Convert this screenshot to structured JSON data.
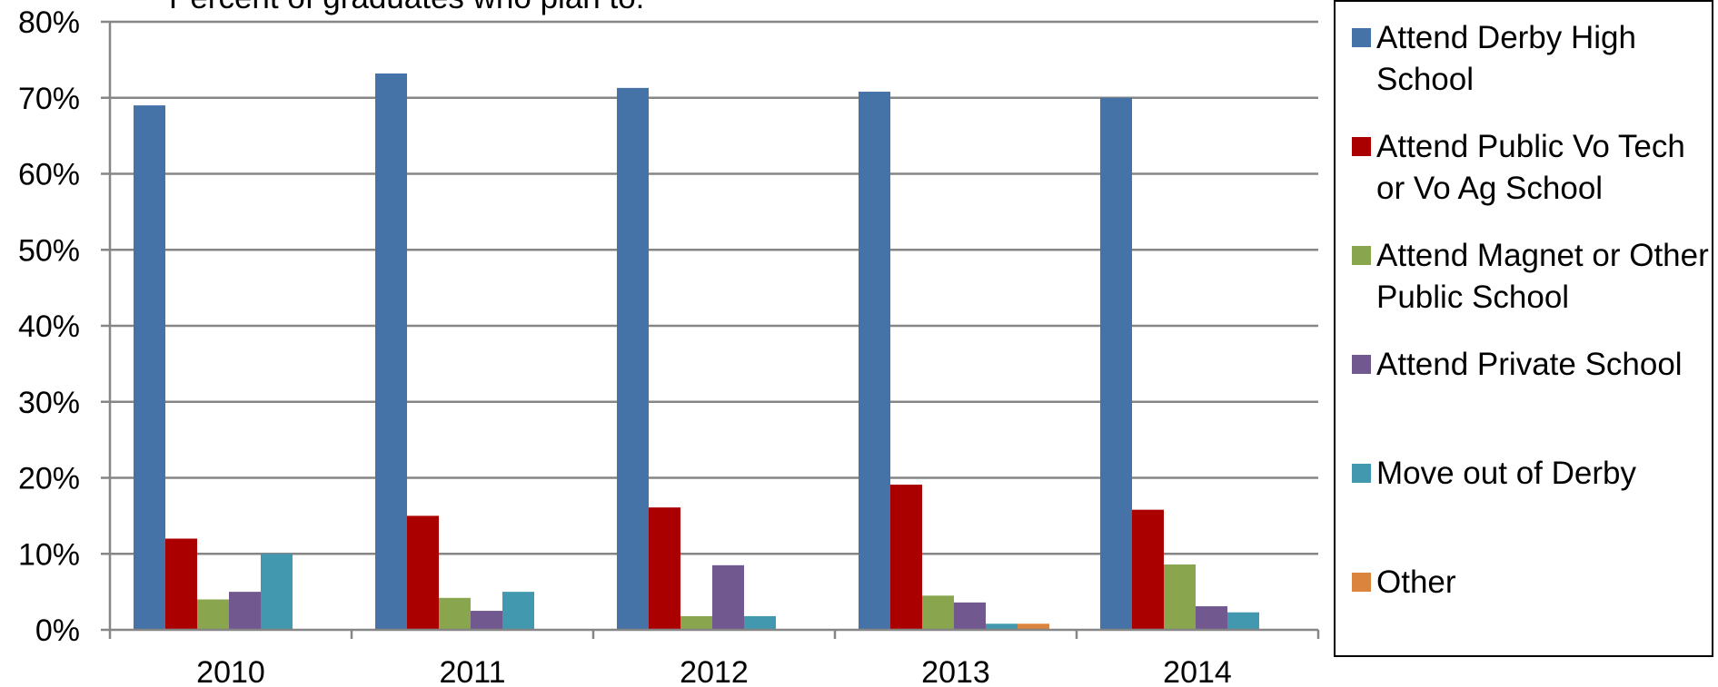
{
  "chart_data": {
    "type": "bar",
    "title": "Percent of graduates who plan to:",
    "xlabel": "",
    "ylabel": "",
    "ylim": [
      0,
      0.8
    ],
    "yticks": [
      "0%",
      "10%",
      "20%",
      "30%",
      "40%",
      "50%",
      "60%",
      "70%",
      "80%"
    ],
    "grid": true,
    "legend_position": "right",
    "categories": [
      "2010",
      "2011",
      "2012",
      "2013",
      "2014"
    ],
    "series": [
      {
        "name": "Attend Derby High School",
        "color": "#4572A7",
        "values": [
          0.69,
          0.732,
          0.713,
          0.708,
          0.7
        ]
      },
      {
        "name": "Attend Public Vo Tech or Vo Ag School",
        "color": "#AA0000",
        "values": [
          0.12,
          0.15,
          0.161,
          0.191,
          0.158
        ]
      },
      {
        "name": "Attend Magnet or Other Public School",
        "color": "#89A54E",
        "values": [
          0.04,
          0.042,
          0.018,
          0.045,
          0.086
        ]
      },
      {
        "name": "Attend Private School",
        "color": "#71588F",
        "values": [
          0.05,
          0.025,
          0.085,
          0.036,
          0.031
        ]
      },
      {
        "name": "Move out of Derby",
        "color": "#4198AF",
        "values": [
          0.1,
          0.05,
          0.018,
          0.008,
          0.023
        ]
      },
      {
        "name": "Other",
        "color": "#DB843D",
        "values": [
          0,
          0,
          0,
          0.008,
          0
        ]
      }
    ]
  },
  "legend": {
    "items": [
      {
        "label": "Attend Derby High School",
        "color": "#4572A7"
      },
      {
        "label": "Attend Public Vo Tech or Vo Ag School",
        "color": "#AA0000"
      },
      {
        "label": "Attend Magnet or Other Public School",
        "color": "#89A54E"
      },
      {
        "label": "Attend Private School",
        "color": "#71588F"
      },
      {
        "label": "Move out of Derby",
        "color": "#4198AF"
      },
      {
        "label": "Other",
        "color": "#DB843D"
      }
    ]
  }
}
